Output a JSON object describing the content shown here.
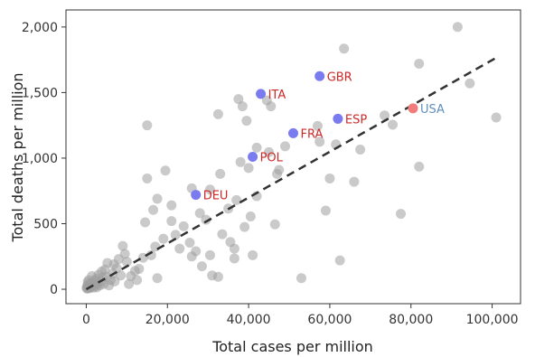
{
  "chart_data": {
    "type": "scatter",
    "xlabel": "Total cases per million",
    "ylabel": "Total deaths per million",
    "xlim": [
      -5000,
      107000
    ],
    "ylim": [
      -110,
      2130
    ],
    "x_ticks": [
      0,
      20000,
      40000,
      60000,
      80000,
      100000
    ],
    "x_tick_labels": [
      "0",
      "20,000",
      "40,000",
      "60,000",
      "80,000",
      "100,000"
    ],
    "y_ticks": [
      0,
      500,
      1000,
      1500,
      2000
    ],
    "y_tick_labels": [
      "0",
      "500",
      "1,000",
      "1,500",
      "2,000"
    ],
    "grid": false,
    "colors": {
      "background_points": "#9e9e9e",
      "highlight_points": "#7b7bf0",
      "usa_point": "#f27b7b",
      "highlight_labels": "#cc2a2a",
      "usa_label": "#5f8fbf",
      "trend_line": "#333333",
      "axis_frame": "#333333"
    },
    "trend_line": {
      "x": [
        0,
        101000
      ],
      "y": [
        0,
        1765
      ],
      "style": "dashed"
    },
    "highlighted": [
      {
        "label": "ITA",
        "x": 43000,
        "y": 1490,
        "color_key": "highlight"
      },
      {
        "label": "GBR",
        "x": 57500,
        "y": 1625,
        "color_key": "highlight"
      },
      {
        "label": "ESP",
        "x": 62000,
        "y": 1300,
        "color_key": "highlight"
      },
      {
        "label": "FRA",
        "x": 51000,
        "y": 1190,
        "color_key": "highlight"
      },
      {
        "label": "POL",
        "x": 41000,
        "y": 1010,
        "color_key": "highlight"
      },
      {
        "label": "DEU",
        "x": 27000,
        "y": 720,
        "color_key": "highlight"
      },
      {
        "label": "USA",
        "x": 80500,
        "y": 1380,
        "color_key": "usa"
      }
    ],
    "points": [
      [
        91500,
        2000
      ],
      [
        63500,
        1835
      ],
      [
        82000,
        1720
      ],
      [
        94500,
        1570
      ],
      [
        101000,
        1310
      ],
      [
        37500,
        1450
      ],
      [
        44500,
        1440
      ],
      [
        38500,
        1395
      ],
      [
        45500,
        1395
      ],
      [
        32500,
        1335
      ],
      [
        57000,
        1245
      ],
      [
        73500,
        1325
      ],
      [
        75500,
        1255
      ],
      [
        39500,
        1285
      ],
      [
        15000,
        1250
      ],
      [
        61500,
        1105
      ],
      [
        67500,
        1065
      ],
      [
        57500,
        1125
      ],
      [
        49000,
        1090
      ],
      [
        42000,
        1080
      ],
      [
        45000,
        1045
      ],
      [
        47500,
        910
      ],
      [
        47000,
        880
      ],
      [
        38000,
        970
      ],
      [
        40000,
        925
      ],
      [
        19500,
        905
      ],
      [
        15000,
        845
      ],
      [
        33000,
        880
      ],
      [
        30500,
        760
      ],
      [
        26000,
        770
      ],
      [
        42000,
        710
      ],
      [
        37000,
        680
      ],
      [
        60000,
        845
      ],
      [
        66000,
        820
      ],
      [
        82000,
        935
      ],
      [
        35000,
        615
      ],
      [
        40500,
        555
      ],
      [
        28000,
        580
      ],
      [
        21000,
        640
      ],
      [
        17500,
        690
      ],
      [
        16500,
        605
      ],
      [
        14500,
        510
      ],
      [
        21000,
        520
      ],
      [
        24000,
        480
      ],
      [
        29500,
        530
      ],
      [
        39000,
        475
      ],
      [
        46500,
        495
      ],
      [
        59000,
        600
      ],
      [
        77500,
        575
      ],
      [
        22000,
        415
      ],
      [
        19000,
        385
      ],
      [
        17000,
        325
      ],
      [
        16000,
        260
      ],
      [
        14000,
        240
      ],
      [
        13000,
        155
      ],
      [
        23000,
        310
      ],
      [
        25500,
        355
      ],
      [
        33500,
        420
      ],
      [
        35500,
        360
      ],
      [
        36500,
        310
      ],
      [
        27000,
        290
      ],
      [
        26000,
        250
      ],
      [
        28500,
        175
      ],
      [
        31000,
        105
      ],
      [
        32500,
        95
      ],
      [
        36500,
        235
      ],
      [
        41000,
        260
      ],
      [
        53000,
        85
      ],
      [
        62500,
        220
      ],
      [
        30500,
        260
      ],
      [
        11000,
        100
      ],
      [
        12000,
        140
      ],
      [
        10000,
        210
      ],
      [
        9500,
        270
      ],
      [
        9000,
        330
      ],
      [
        8000,
        230
      ],
      [
        7500,
        160
      ],
      [
        6500,
        120
      ],
      [
        6000,
        70
      ],
      [
        5200,
        200
      ],
      [
        4600,
        150
      ],
      [
        4000,
        90
      ],
      [
        3600,
        60
      ],
      [
        3000,
        110
      ],
      [
        2700,
        40
      ],
      [
        2400,
        80
      ],
      [
        2000,
        25
      ],
      [
        1700,
        50
      ],
      [
        1400,
        100
      ],
      [
        1100,
        15
      ],
      [
        900,
        45
      ],
      [
        700,
        25
      ],
      [
        550,
        10
      ],
      [
        400,
        35
      ],
      [
        250,
        5
      ],
      [
        150,
        20
      ],
      [
        100,
        8
      ],
      [
        350,
        55
      ],
      [
        600,
        70
      ],
      [
        800,
        8
      ],
      [
        1200,
        30
      ],
      [
        1800,
        12
      ],
      [
        2200,
        65
      ],
      [
        2600,
        15
      ],
      [
        3300,
        30
      ],
      [
        3800,
        135
      ],
      [
        4300,
        40
      ],
      [
        5000,
        95
      ],
      [
        5600,
        30
      ],
      [
        7000,
        60
      ],
      [
        8500,
        105
      ],
      [
        10500,
        40
      ],
      [
        12500,
        70
      ],
      [
        17500,
        85
      ],
      [
        6800,
        190
      ]
    ]
  }
}
